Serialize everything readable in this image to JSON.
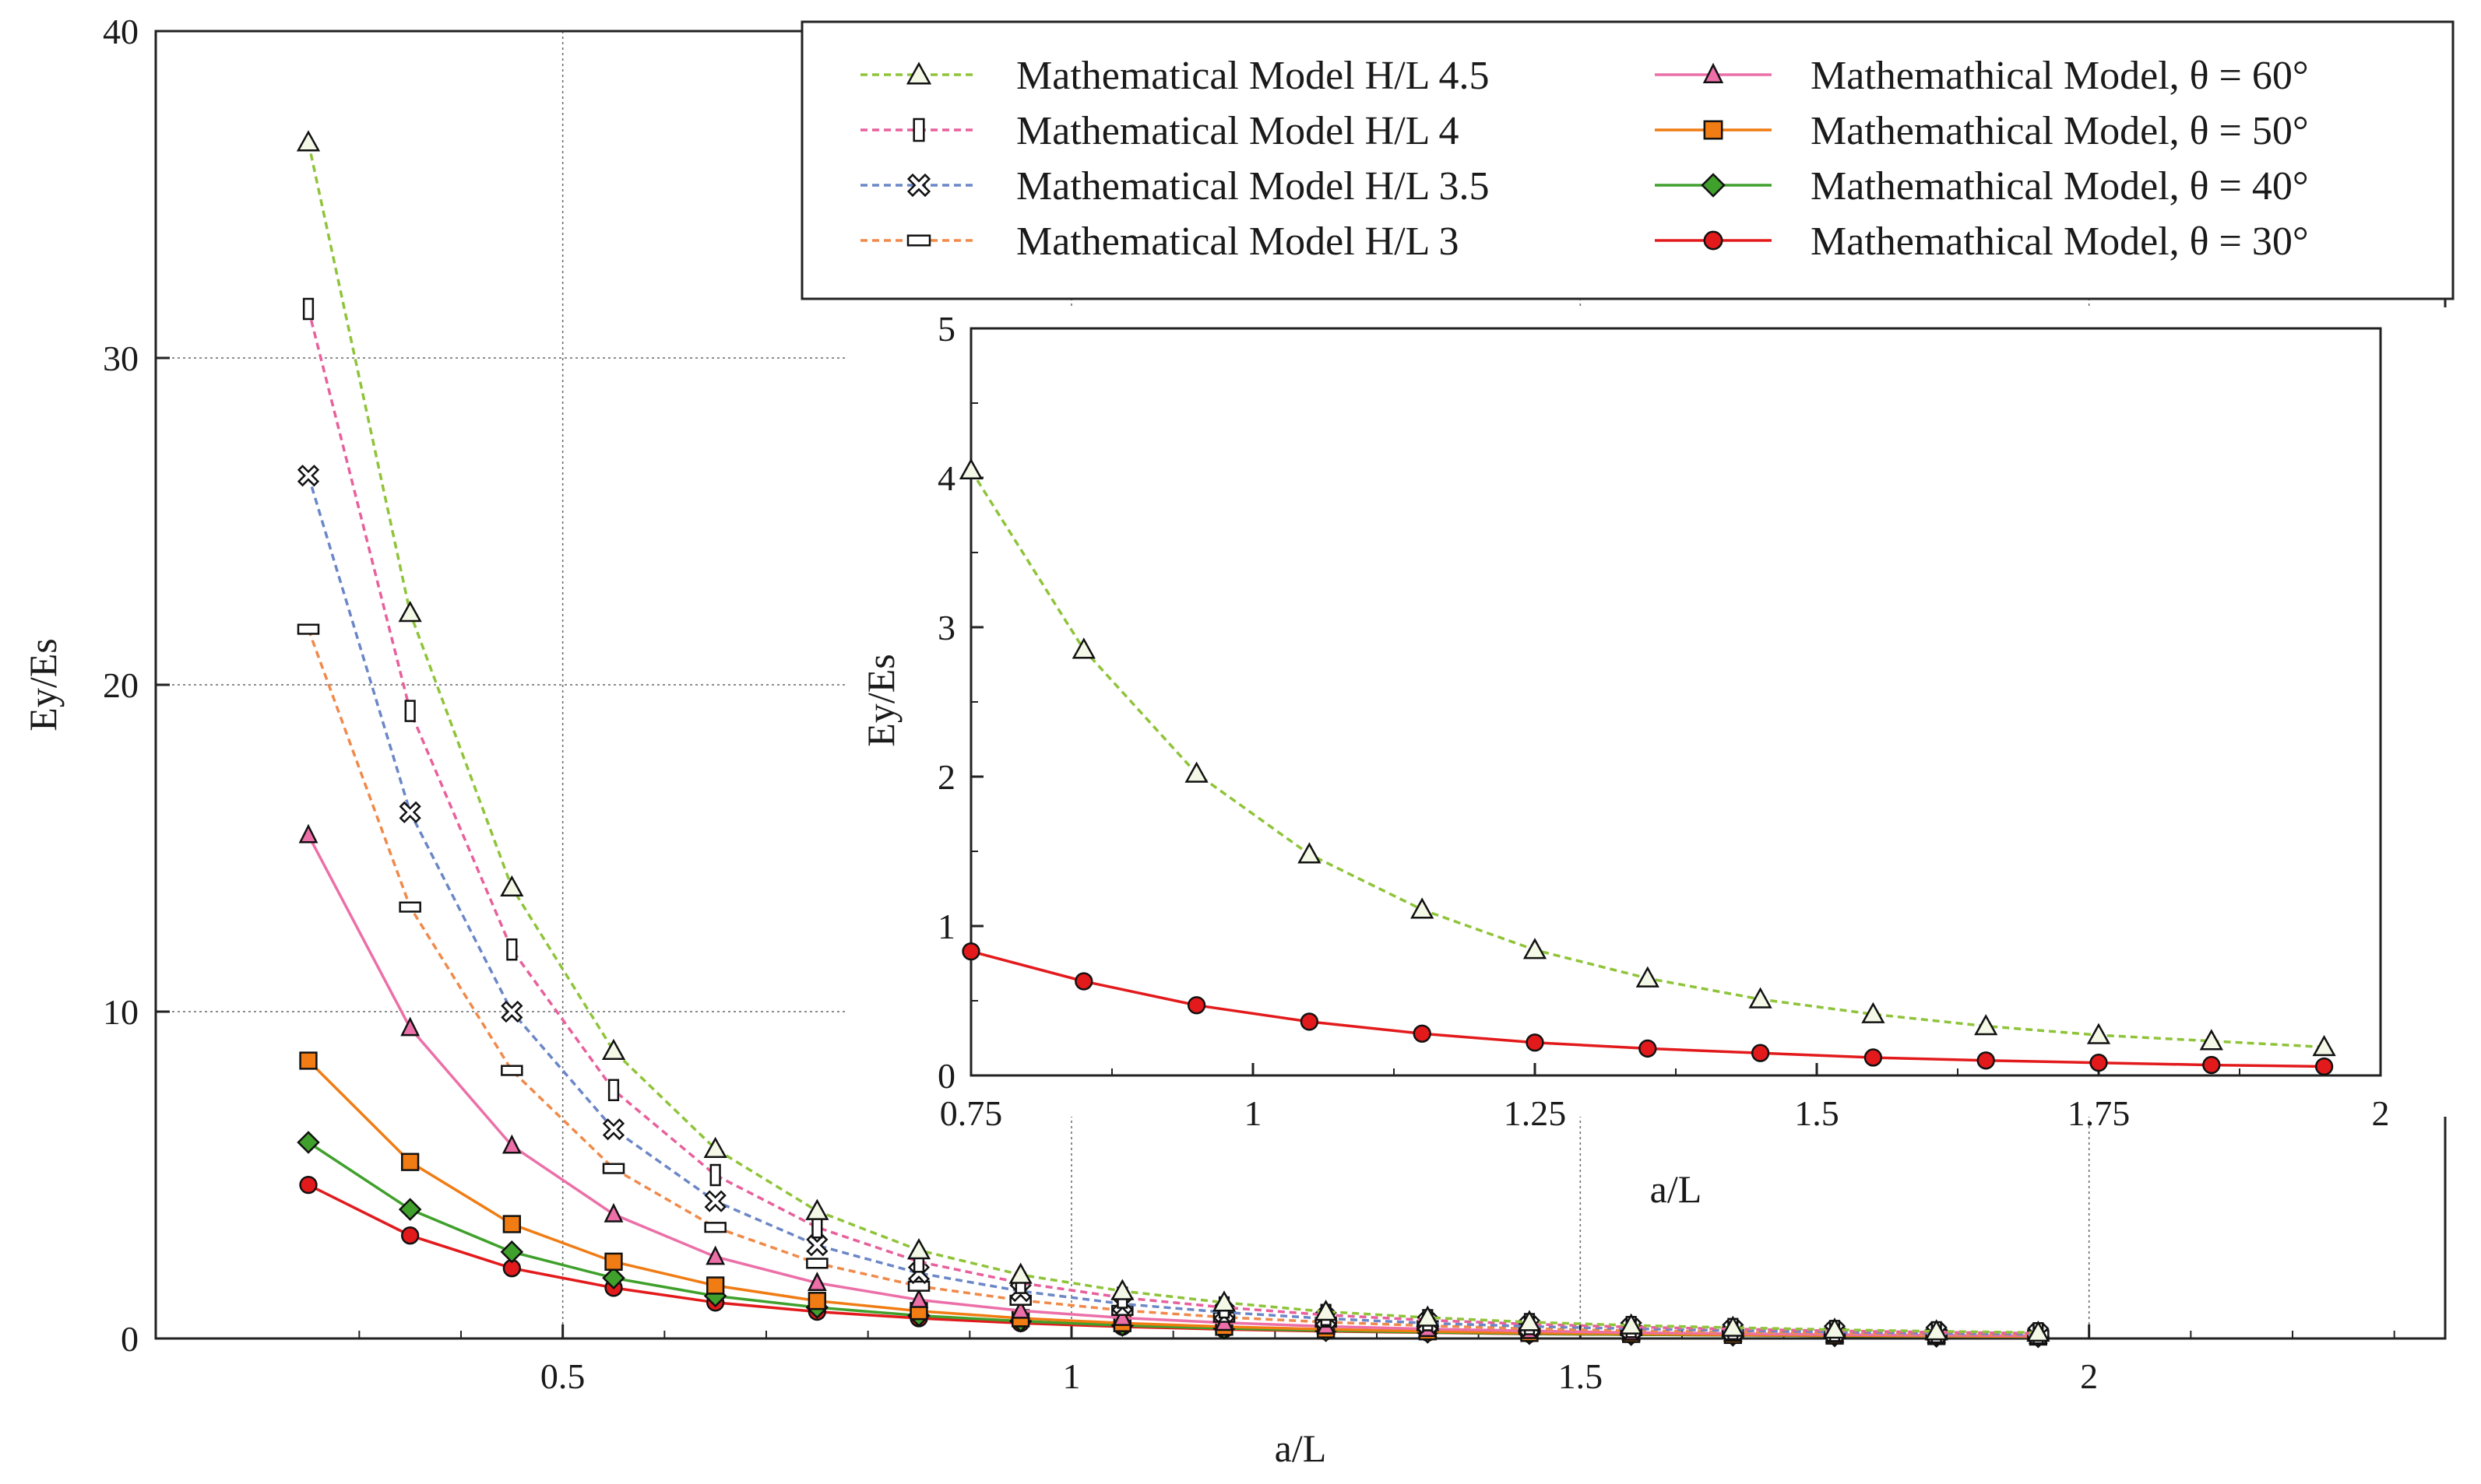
{
  "chart_data": [
    {
      "type": "line",
      "id": "main",
      "xlabel": "a/L",
      "ylabel": "Ey/Es",
      "xlim": [
        0.1,
        2.35
      ],
      "ylim": [
        0,
        40
      ],
      "xticks": [
        0.5,
        1,
        1.5,
        2
      ],
      "xtick_labels": [
        "0.5",
        "1",
        "1.5",
        "2"
      ],
      "yticks": [
        0,
        10,
        20,
        30,
        40
      ],
      "ytick_labels": [
        "0",
        "10",
        "20",
        "30",
        "40"
      ],
      "grid": true,
      "legend_position": "top-right",
      "x": [
        0.25,
        0.35,
        0.45,
        0.55,
        0.65,
        0.75,
        0.85,
        0.95,
        1.05,
        1.15,
        1.25,
        1.35,
        1.45,
        1.55,
        1.65,
        1.75,
        1.85,
        1.95
      ],
      "series": [
        {
          "key": "hl45",
          "name": "Mathematical Model H/L 4.5",
          "color": "#8fc43a",
          "dash": true,
          "marker": "triangle-open",
          "values": [
            36.6,
            22.2,
            13.8,
            8.8,
            5.8,
            3.9,
            2.7,
            1.95,
            1.45,
            1.1,
            0.82,
            0.64,
            0.5,
            0.4,
            0.33,
            0.27,
            0.22,
            0.18
          ]
        },
        {
          "key": "hl4",
          "name": "Mathematical Model H/L 4",
          "color": "#e8609c",
          "dash": true,
          "marker": "rect-tall-open",
          "values": [
            31.5,
            19.2,
            11.9,
            7.6,
            5.0,
            3.4,
            2.35,
            1.7,
            1.25,
            0.95,
            0.72,
            0.56,
            0.44,
            0.35,
            0.29,
            0.23,
            0.19,
            0.16
          ]
        },
        {
          "key": "hl35",
          "name": "Mathematical Model H/L 3.5",
          "color": "#6b87c7",
          "dash": true,
          "marker": "x-open",
          "values": [
            26.4,
            16.1,
            10.0,
            6.4,
            4.2,
            2.85,
            2.0,
            1.45,
            1.06,
            0.8,
            0.61,
            0.47,
            0.37,
            0.3,
            0.24,
            0.2,
            0.16,
            0.13
          ]
        },
        {
          "key": "hl3",
          "name": "Mathematical Model H/L 3",
          "color": "#f08a4b",
          "dash": true,
          "marker": "rect-wide-open",
          "values": [
            21.7,
            13.2,
            8.2,
            5.2,
            3.4,
            2.3,
            1.6,
            1.17,
            0.86,
            0.65,
            0.5,
            0.39,
            0.3,
            0.24,
            0.2,
            0.16,
            0.13,
            0.11
          ]
        },
        {
          "key": "th60",
          "name": "Mathemathical Model, θ = 60°",
          "color": "#ec6fa8",
          "dash": false,
          "marker": "triangle-fill",
          "values": [
            15.4,
            9.5,
            5.9,
            3.8,
            2.5,
            1.7,
            1.18,
            0.85,
            0.63,
            0.48,
            0.37,
            0.29,
            0.23,
            0.18,
            0.15,
            0.12,
            0.1,
            0.08
          ]
        },
        {
          "key": "th50",
          "name": "Mathemathical Model, θ = 50°",
          "color": "#f07c13",
          "dash": false,
          "marker": "square-fill",
          "values": [
            8.5,
            5.4,
            3.5,
            2.35,
            1.62,
            1.15,
            0.84,
            0.62,
            0.47,
            0.36,
            0.28,
            0.22,
            0.17,
            0.14,
            0.11,
            0.09,
            0.075,
            0.06
          ]
        },
        {
          "key": "th40",
          "name": "Mathemathical Model, θ = 40°",
          "color": "#3fa02c",
          "dash": false,
          "marker": "diamond-fill",
          "values": [
            6.0,
            3.95,
            2.65,
            1.85,
            1.3,
            0.95,
            0.7,
            0.53,
            0.4,
            0.31,
            0.24,
            0.19,
            0.15,
            0.12,
            0.1,
            0.08,
            0.065,
            0.055
          ]
        },
        {
          "key": "th30",
          "name": "Mathemathical Model, θ = 30°",
          "color": "#e31a1c",
          "dash": false,
          "marker": "circle-fill",
          "values": [
            4.7,
            3.15,
            2.15,
            1.55,
            1.1,
            0.82,
            0.62,
            0.47,
            0.36,
            0.28,
            0.22,
            0.18,
            0.14,
            0.12,
            0.1,
            0.08,
            0.065,
            0.055
          ]
        }
      ]
    },
    {
      "type": "line",
      "id": "inset",
      "xlabel": "a/L",
      "ylabel": "Ey/Es",
      "xlim": [
        0.75,
        2.0
      ],
      "ylim": [
        0,
        5
      ],
      "xticks": [
        0.75,
        1,
        1.25,
        1.5,
        1.75,
        2
      ],
      "xtick_labels": [
        "0.75",
        "1",
        "1.25",
        "1.5",
        "1.75",
        "2"
      ],
      "yticks": [
        0,
        1,
        2,
        3,
        4,
        5
      ],
      "ytick_labels": [
        "0",
        "1",
        "2",
        "3",
        "4",
        "5"
      ],
      "grid": false,
      "x": [
        0.75,
        0.85,
        0.95,
        1.05,
        1.15,
        1.25,
        1.35,
        1.45,
        1.55,
        1.65,
        1.75,
        1.85,
        1.95
      ],
      "series": [
        {
          "key": "hl45",
          "color": "#8fc43a",
          "dash": true,
          "marker": "triangle-open",
          "values": [
            4.05,
            2.85,
            2.02,
            1.48,
            1.11,
            0.84,
            0.65,
            0.51,
            0.41,
            0.33,
            0.27,
            0.23,
            0.19
          ]
        },
        {
          "key": "th30",
          "color": "#e31a1c",
          "dash": false,
          "marker": "circle-fill",
          "values": [
            0.83,
            0.63,
            0.47,
            0.36,
            0.28,
            0.22,
            0.18,
            0.15,
            0.12,
            0.1,
            0.085,
            0.07,
            0.06
          ]
        }
      ]
    }
  ]
}
